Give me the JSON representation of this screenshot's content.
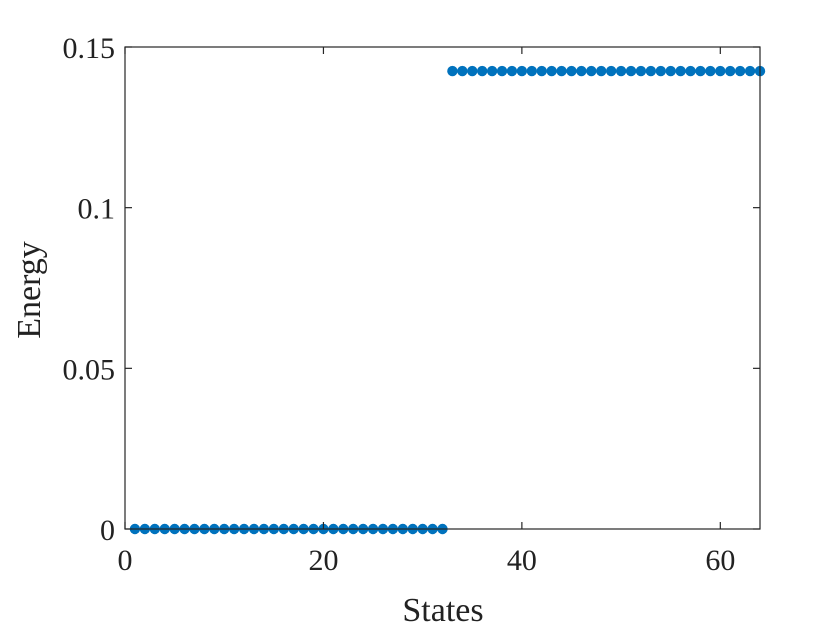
{
  "chart_data": {
    "type": "scatter",
    "title": "",
    "xlabel": "States",
    "ylabel": "Energy",
    "xlim": [
      0,
      64
    ],
    "ylim": [
      0,
      0.15
    ],
    "xticks": [
      0,
      20,
      40,
      60
    ],
    "xtick_labels": [
      "0",
      "20",
      "40",
      "60"
    ],
    "yticks": [
      0,
      0.05,
      0.1,
      0.15
    ],
    "ytick_labels": [
      "0",
      "0.05",
      "0.1",
      "0.15"
    ],
    "grid": false,
    "marker_color": "#0072BD",
    "series": [
      {
        "x": [
          1,
          2,
          3,
          4,
          5,
          6,
          7,
          8,
          9,
          10,
          11,
          12,
          13,
          14,
          15,
          16,
          17,
          18,
          19,
          20,
          21,
          22,
          23,
          24,
          25,
          26,
          27,
          28,
          29,
          30,
          31,
          32,
          33,
          34,
          35,
          36,
          37,
          38,
          39,
          40,
          41,
          42,
          43,
          44,
          45,
          46,
          47,
          48,
          49,
          50,
          51,
          52,
          53,
          54,
          55,
          56,
          57,
          58,
          59,
          60,
          61,
          62,
          63,
          64
        ],
        "y": [
          0,
          0,
          0,
          0,
          0,
          0,
          0,
          0,
          0,
          0,
          0,
          0,
          0,
          0,
          0,
          0,
          0,
          0,
          0,
          0,
          0,
          0,
          0,
          0,
          0,
          0,
          0,
          0,
          0,
          0,
          0,
          0,
          0.1425,
          0.1425,
          0.1425,
          0.1425,
          0.1425,
          0.1425,
          0.1425,
          0.1425,
          0.1425,
          0.1425,
          0.1425,
          0.1425,
          0.1425,
          0.1425,
          0.1425,
          0.1425,
          0.1425,
          0.1425,
          0.1425,
          0.1425,
          0.1425,
          0.1425,
          0.1425,
          0.1425,
          0.1425,
          0.1425,
          0.1425,
          0.1425,
          0.1425,
          0.1425,
          0.1425,
          0.1425
        ]
      }
    ]
  }
}
